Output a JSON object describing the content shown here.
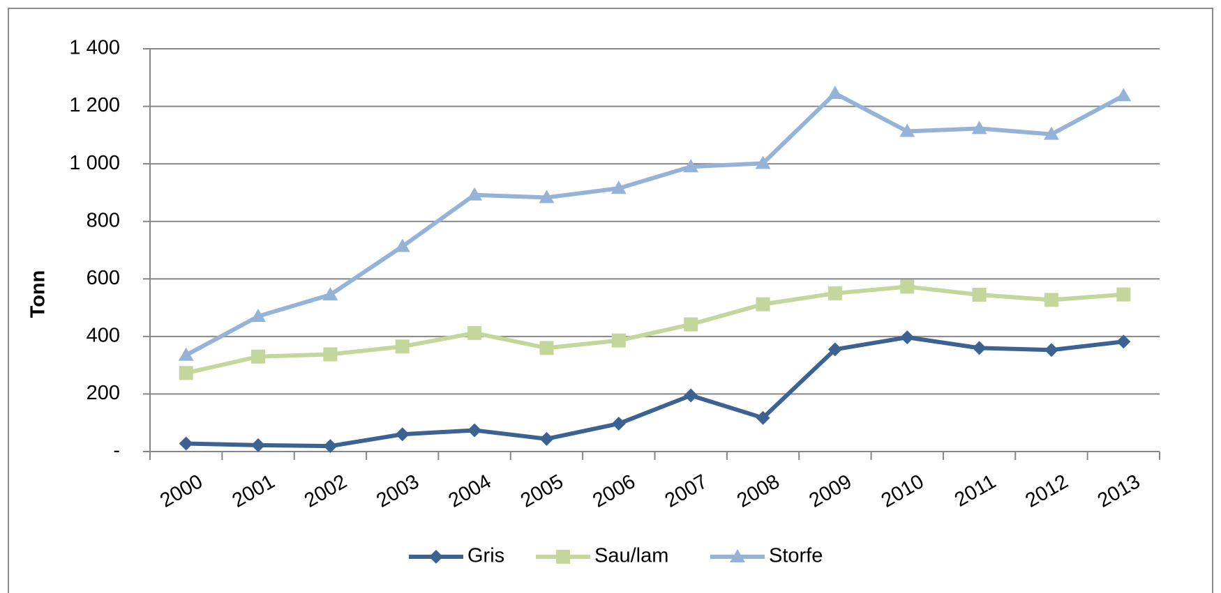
{
  "chart_data": {
    "type": "line",
    "y_label": "Tonn",
    "categories": [
      "2000",
      "2001",
      "2002",
      "2003",
      "2004",
      "2005",
      "2006",
      "2007",
      "2008",
      "2009",
      "2010",
      "2011",
      "2012",
      "2013"
    ],
    "series": [
      {
        "name": "Gris",
        "color": "#3b6291",
        "marker": "diamond",
        "values": [
          28,
          22,
          19,
          60,
          74,
          44,
          97,
          195,
          117,
          355,
          397,
          360,
          353,
          382
        ]
      },
      {
        "name": "Sau/lam",
        "color": "#c3d69b",
        "marker": "square",
        "values": [
          273,
          330,
          338,
          365,
          412,
          360,
          386,
          442,
          512,
          550,
          573,
          545,
          527,
          546
        ]
      },
      {
        "name": "Storfe",
        "color": "#95b3d7",
        "marker": "triangle",
        "values": [
          335,
          470,
          545,
          713,
          892,
          883,
          915,
          990,
          1002,
          1245,
          1113,
          1123,
          1103,
          1237
        ]
      }
    ],
    "ylim": [
      0,
      1400
    ],
    "yticks": [
      {
        "value": 0,
        "label": "-"
      },
      200,
      400,
      600,
      800,
      {
        "value": 1000,
        "label": "1 000"
      },
      {
        "value": 1200,
        "label": "1 200"
      },
      {
        "value": 1400,
        "label": "1 400"
      }
    ],
    "grid": true,
    "legend": "bottom"
  }
}
